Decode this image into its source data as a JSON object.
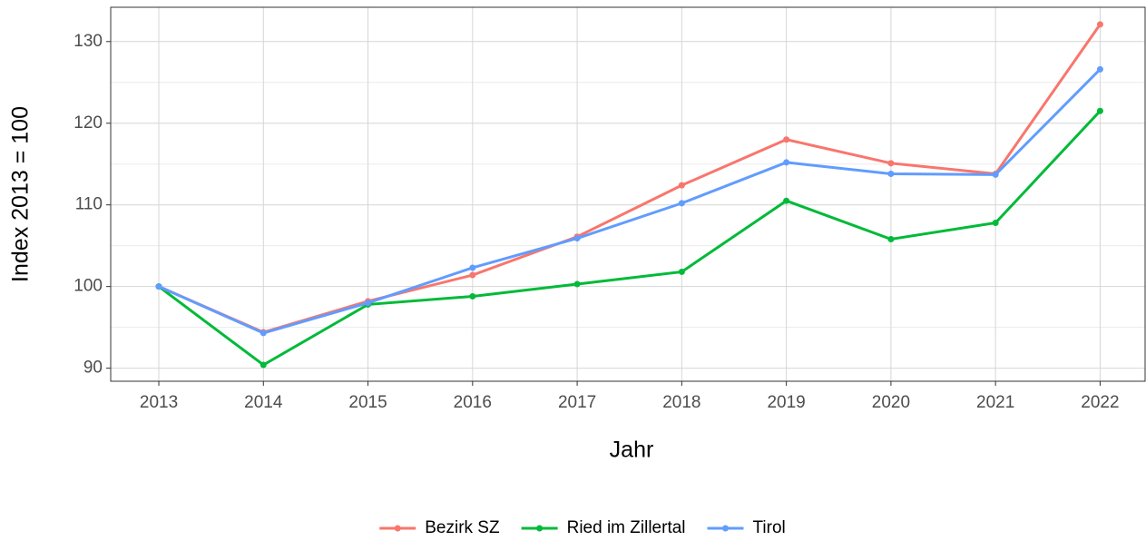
{
  "chart_data": {
    "type": "line",
    "x_label": "Jahr",
    "y_label": "Index  2013  = 100",
    "x": [
      2013,
      2014,
      2015,
      2016,
      2017,
      2018,
      2019,
      2020,
      2021,
      2022
    ],
    "series": [
      {
        "name": "Bezirk SZ",
        "color": "#F8766D",
        "values": [
          100,
          94.4,
          98.2,
          101.4,
          106.1,
          112.4,
          118,
          115.1,
          113.8,
          132.1
        ]
      },
      {
        "name": "Ried im Zillertal",
        "color": "#00BA38",
        "values": [
          100,
          90.4,
          97.8,
          98.8,
          100.3,
          101.8,
          110.5,
          105.8,
          107.8,
          121.5
        ]
      },
      {
        "name": "Tirol",
        "color": "#619CFF",
        "values": [
          100,
          94.3,
          98.0,
          102.3,
          105.9,
          110.2,
          115.2,
          113.8,
          113.7,
          126.6
        ]
      }
    ],
    "xlim": [
      2012.54,
      2022.43
    ],
    "xticks": [
      2013,
      2014,
      2015,
      2016,
      2017,
      2018,
      2019,
      2020,
      2021,
      2022
    ],
    "ylim": [
      88.4,
      134.2
    ],
    "yticks": [
      90,
      100,
      110,
      120,
      130
    ],
    "yminor": [
      95,
      105,
      115,
      125
    ],
    "grid": true,
    "legend": "bottom"
  }
}
